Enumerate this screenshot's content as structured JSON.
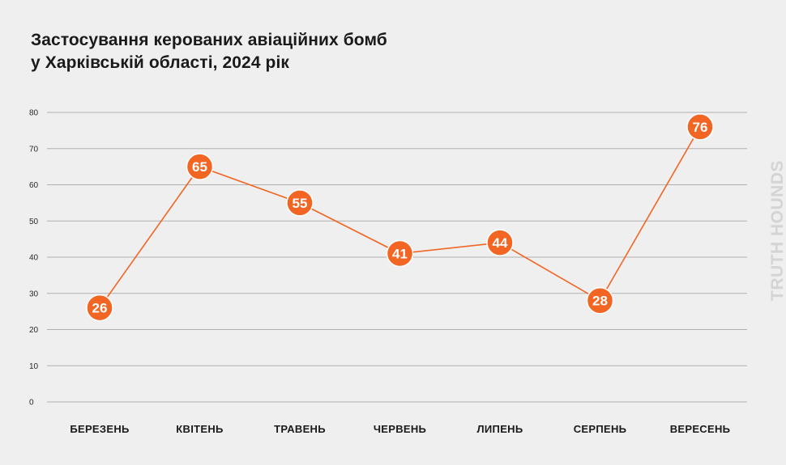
{
  "title_line1": "Застосування керованих авіаційних бомб",
  "title_line2": "у Харківській області, 2024 рік",
  "watermark": "TRUTH HOUNDS",
  "colors": {
    "line": "#f26522",
    "grid": "#b0b0b0",
    "background": "#efefef"
  },
  "chart_data": {
    "type": "line",
    "title": "Застосування керованих авіаційних бомб у Харківській області, 2024 рік",
    "categories": [
      "БЕРЕЗЕНЬ",
      "КВІТЕНЬ",
      "ТРАВЕНЬ",
      "ЧЕРВЕНЬ",
      "ЛИПЕНЬ",
      "СЕРПЕНЬ",
      "ВЕРЕСЕНЬ"
    ],
    "series": [
      {
        "name": "",
        "values": [
          26,
          65,
          55,
          41,
          44,
          28,
          76
        ]
      }
    ],
    "yticks": [
      0,
      10,
      20,
      30,
      40,
      50,
      60,
      70,
      80
    ],
    "ylim": [
      0,
      80
    ],
    "xlabel": "",
    "ylabel": "",
    "grid": true,
    "data_labels": true
  }
}
